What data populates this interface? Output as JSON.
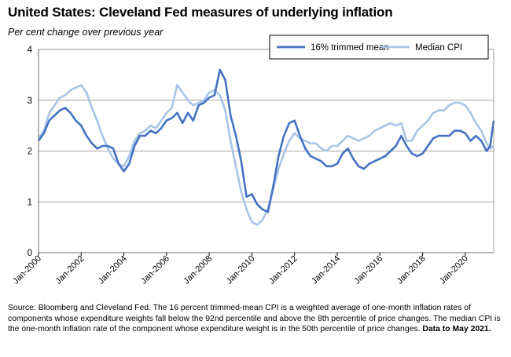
{
  "header": {
    "title": "United States: Cleveland Fed measures of underlying inflation",
    "subtitle": "Per cent change over previous year"
  },
  "footer": {
    "source": "Source: Bloomberg and Cleveland Fed. The 16 percent trimmed-mean CPI is a weighted average of one-month inflation rates of components whose expenditure weights fall below the 92nd percentile and above the 8th percentile of price changes. The median CPI is the one-month inflation rate of the component whose expenditure weight is in the 50th percentile of price changes.",
    "data_note": "Data to May 2021."
  },
  "chart_data": {
    "type": "line",
    "title": "United States: Cleveland Fed measures of underlying inflation",
    "ylabel": "Per cent change over previous year",
    "xlabel": "",
    "xlim": [
      "2000-01",
      "2021-05"
    ],
    "ylim": [
      0,
      4
    ],
    "yticks": [
      0,
      1,
      2,
      3,
      4
    ],
    "xtick_labels": [
      "Jan-2000",
      "Jan-2002",
      "Jan-2004",
      "Jan-2006",
      "Jan-2008",
      "Jan-2010",
      "Jan-2012",
      "Jan-2014",
      "Jan-2016",
      "Jan-2018",
      "Jan-2020"
    ],
    "grid": true,
    "legend_position": "top-right",
    "colors": {
      "trimmed": "#4472c4",
      "median": "#a9c4e6"
    },
    "series": [
      {
        "name": "16% trimmed mean",
        "color": "#4472c4",
        "x": [
          "2000-01",
          "2000-04",
          "2000-07",
          "2000-10",
          "2001-01",
          "2001-04",
          "2001-07",
          "2001-10",
          "2002-01",
          "2002-04",
          "2002-07",
          "2002-10",
          "2003-01",
          "2003-04",
          "2003-07",
          "2003-10",
          "2004-01",
          "2004-04",
          "2004-07",
          "2004-10",
          "2005-01",
          "2005-04",
          "2005-07",
          "2005-10",
          "2006-01",
          "2006-04",
          "2006-07",
          "2006-10",
          "2007-01",
          "2007-04",
          "2007-07",
          "2007-10",
          "2008-01",
          "2008-04",
          "2008-07",
          "2008-10",
          "2009-01",
          "2009-04",
          "2009-07",
          "2009-10",
          "2010-01",
          "2010-04",
          "2010-07",
          "2010-10",
          "2011-01",
          "2011-04",
          "2011-07",
          "2011-10",
          "2012-01",
          "2012-04",
          "2012-07",
          "2012-10",
          "2013-01",
          "2013-04",
          "2013-07",
          "2013-10",
          "2014-01",
          "2014-04",
          "2014-07",
          "2014-10",
          "2015-01",
          "2015-04",
          "2015-07",
          "2015-10",
          "2016-01",
          "2016-04",
          "2016-07",
          "2016-10",
          "2017-01",
          "2017-04",
          "2017-07",
          "2017-10",
          "2018-01",
          "2018-04",
          "2018-07",
          "2018-10",
          "2019-01",
          "2019-04",
          "2019-07",
          "2019-10",
          "2020-01",
          "2020-04",
          "2020-07",
          "2020-10",
          "2021-01",
          "2021-03",
          "2021-05"
        ],
        "values": [
          2.2,
          2.35,
          2.6,
          2.7,
          2.8,
          2.85,
          2.75,
          2.6,
          2.5,
          2.3,
          2.15,
          2.05,
          2.1,
          2.1,
          2.05,
          1.75,
          1.6,
          1.75,
          2.1,
          2.3,
          2.3,
          2.4,
          2.35,
          2.45,
          2.6,
          2.65,
          2.75,
          2.55,
          2.75,
          2.6,
          2.9,
          2.95,
          3.05,
          3.1,
          3.6,
          3.4,
          2.7,
          2.3,
          1.8,
          1.1,
          1.15,
          0.95,
          0.85,
          0.8,
          1.3,
          1.9,
          2.3,
          2.55,
          2.6,
          2.3,
          2.05,
          1.9,
          1.85,
          1.8,
          1.7,
          1.7,
          1.75,
          1.95,
          2.05,
          1.85,
          1.7,
          1.65,
          1.75,
          1.8,
          1.85,
          1.9,
          2.0,
          2.1,
          2.3,
          2.1,
          1.95,
          1.9,
          1.95,
          2.1,
          2.25,
          2.3,
          2.3,
          2.3,
          2.4,
          2.4,
          2.35,
          2.2,
          2.3,
          2.2,
          2.0,
          2.1,
          2.6
        ]
      },
      {
        "name": "Median CPI",
        "color": "#a9c4e6",
        "x": [
          "2000-01",
          "2000-04",
          "2000-07",
          "2000-10",
          "2001-01",
          "2001-04",
          "2001-07",
          "2001-10",
          "2002-01",
          "2002-04",
          "2002-07",
          "2002-10",
          "2003-01",
          "2003-04",
          "2003-07",
          "2003-10",
          "2004-01",
          "2004-04",
          "2004-07",
          "2004-10",
          "2005-01",
          "2005-04",
          "2005-07",
          "2005-10",
          "2006-01",
          "2006-04",
          "2006-07",
          "2006-10",
          "2007-01",
          "2007-04",
          "2007-07",
          "2007-10",
          "2008-01",
          "2008-04",
          "2008-07",
          "2008-10",
          "2009-01",
          "2009-04",
          "2009-07",
          "2009-10",
          "2010-01",
          "2010-04",
          "2010-07",
          "2010-10",
          "2011-01",
          "2011-04",
          "2011-07",
          "2011-10",
          "2012-01",
          "2012-04",
          "2012-07",
          "2012-10",
          "2013-01",
          "2013-04",
          "2013-07",
          "2013-10",
          "2014-01",
          "2014-04",
          "2014-07",
          "2014-10",
          "2015-01",
          "2015-04",
          "2015-07",
          "2015-10",
          "2016-01",
          "2016-04",
          "2016-07",
          "2016-10",
          "2017-01",
          "2017-04",
          "2017-07",
          "2017-10",
          "2018-01",
          "2018-04",
          "2018-07",
          "2018-10",
          "2019-01",
          "2019-04",
          "2019-07",
          "2019-10",
          "2020-01",
          "2020-04",
          "2020-07",
          "2020-10",
          "2021-01",
          "2021-03",
          "2021-05"
        ],
        "values": [
          2.25,
          2.4,
          2.75,
          2.9,
          3.05,
          3.1,
          3.2,
          3.25,
          3.3,
          3.15,
          2.85,
          2.6,
          2.3,
          2.05,
          1.85,
          1.75,
          1.7,
          1.9,
          2.2,
          2.35,
          2.4,
          2.5,
          2.45,
          2.6,
          2.75,
          2.85,
          3.3,
          3.15,
          3.0,
          2.9,
          2.95,
          3.0,
          3.15,
          3.2,
          3.1,
          2.8,
          2.2,
          1.7,
          1.2,
          0.85,
          0.6,
          0.55,
          0.65,
          0.85,
          1.25,
          1.65,
          1.95,
          2.2,
          2.35,
          2.25,
          2.2,
          2.15,
          2.15,
          2.05,
          2.0,
          2.1,
          2.1,
          2.2,
          2.3,
          2.25,
          2.2,
          2.25,
          2.3,
          2.4,
          2.45,
          2.5,
          2.55,
          2.5,
          2.55,
          2.2,
          2.2,
          2.4,
          2.5,
          2.6,
          2.75,
          2.8,
          2.8,
          2.9,
          2.95,
          2.95,
          2.9,
          2.75,
          2.55,
          2.4,
          2.15,
          2.05,
          2.1
        ]
      }
    ]
  }
}
